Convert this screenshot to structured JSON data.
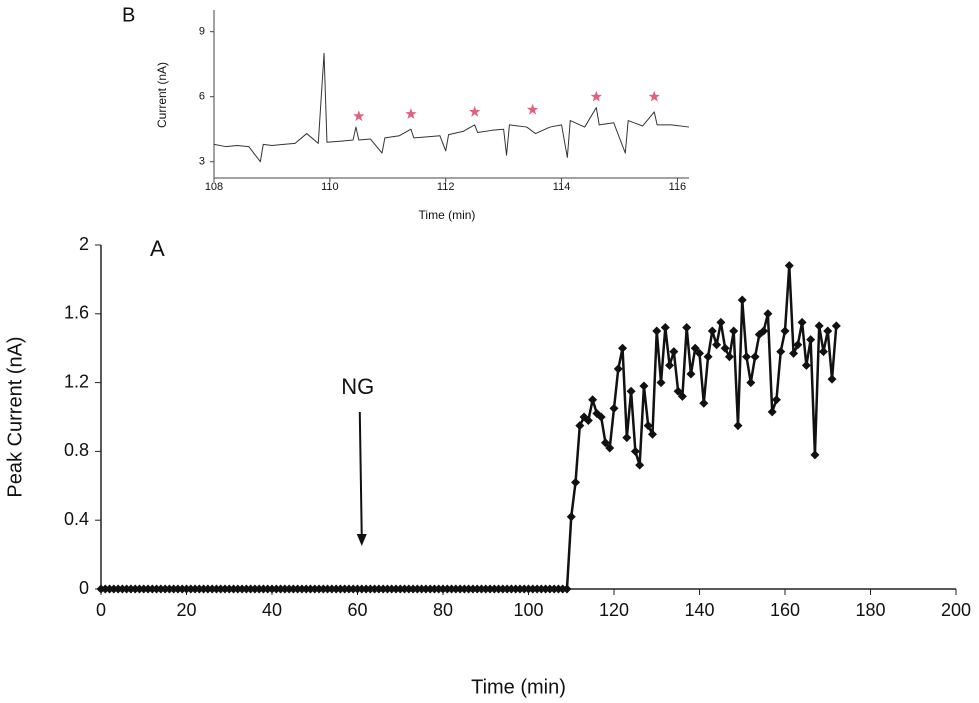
{
  "chart_data": [
    {
      "type": "line",
      "panel_label": "A",
      "xlabel": "Time (min)",
      "ylabel": "Peak Current (nA)",
      "xlim": [
        0,
        200
      ],
      "xticks": [
        0,
        20,
        40,
        60,
        80,
        100,
        120,
        140,
        160,
        180,
        200
      ],
      "ylim": [
        0,
        2
      ],
      "yticks": [
        0,
        0.4,
        0.8,
        1.2,
        1.6,
        2
      ],
      "color": "#111111",
      "marker": "diamond",
      "annotations": [
        {
          "text": "NG",
          "x": 61
        }
      ],
      "x": [
        0,
        1,
        2,
        3,
        4,
        5,
        6,
        7,
        8,
        9,
        10,
        11,
        12,
        13,
        14,
        15,
        16,
        17,
        18,
        19,
        20,
        21,
        22,
        23,
        24,
        25,
        26,
        27,
        28,
        29,
        30,
        31,
        32,
        33,
        34,
        35,
        36,
        37,
        38,
        39,
        40,
        41,
        42,
        43,
        44,
        45,
        46,
        47,
        48,
        49,
        50,
        51,
        52,
        53,
        54,
        55,
        56,
        57,
        58,
        59,
        60,
        61,
        62,
        63,
        64,
        65,
        66,
        67,
        68,
        69,
        70,
        71,
        72,
        73,
        74,
        75,
        76,
        77,
        78,
        79,
        80,
        81,
        82,
        83,
        84,
        85,
        86,
        87,
        88,
        89,
        90,
        91,
        92,
        93,
        94,
        95,
        96,
        97,
        98,
        99,
        100,
        101,
        102,
        103,
        104,
        105,
        106,
        107,
        108,
        109,
        110,
        111,
        112,
        113,
        114,
        115,
        116,
        117,
        118,
        119,
        120,
        121,
        122,
        123,
        124,
        125,
        126,
        127,
        128,
        129,
        130,
        131,
        132,
        133,
        134,
        135,
        136,
        137,
        138,
        139,
        140,
        141,
        142,
        143,
        144,
        145,
        146,
        147,
        148,
        149,
        150,
        151,
        152,
        153,
        154,
        155,
        156,
        157,
        158,
        159,
        160,
        161,
        162,
        163,
        164,
        165,
        166,
        167,
        168,
        169,
        170,
        171,
        172
      ],
      "values": [
        0,
        0,
        0,
        0,
        0,
        0,
        0,
        0,
        0,
        0,
        0,
        0,
        0,
        0,
        0,
        0,
        0,
        0,
        0,
        0,
        0,
        0,
        0,
        0,
        0,
        0,
        0,
        0,
        0,
        0,
        0,
        0,
        0,
        0,
        0,
        0,
        0,
        0,
        0,
        0,
        0,
        0,
        0,
        0,
        0,
        0,
        0,
        0,
        0,
        0,
        0,
        0,
        0,
        0,
        0,
        0,
        0,
        0,
        0,
        0,
        0,
        0,
        0,
        0,
        0,
        0,
        0,
        0,
        0,
        0,
        0,
        0,
        0,
        0,
        0,
        0,
        0,
        0,
        0,
        0,
        0,
        0,
        0,
        0,
        0,
        0,
        0,
        0,
        0,
        0,
        0,
        0,
        0,
        0,
        0,
        0,
        0,
        0,
        0,
        0,
        0,
        0,
        0,
        0,
        0,
        0,
        0,
        0,
        0,
        0,
        0.42,
        0.62,
        0.95,
        1.0,
        0.98,
        1.1,
        1.02,
        1.0,
        0.85,
        0.82,
        1.05,
        1.28,
        1.4,
        0.88,
        1.15,
        0.8,
        0.72,
        1.18,
        0.95,
        0.9,
        1.5,
        1.2,
        1.52,
        1.3,
        1.38,
        1.15,
        1.12,
        1.52,
        1.25,
        1.4,
        1.37,
        1.08,
        1.35,
        1.5,
        1.42,
        1.55,
        1.4,
        1.35,
        1.5,
        0.95,
        1.68,
        1.35,
        1.2,
        1.35,
        1.48,
        1.5,
        1.6,
        1.03,
        1.1,
        1.38,
        1.5,
        1.88,
        1.37,
        1.42,
        1.55,
        1.3,
        1.45,
        0.78,
        1.53,
        1.38,
        1.5,
        1.22,
        1.53
      ]
    },
    {
      "type": "trace",
      "panel_label": "B",
      "xlabel": "Time (min)",
      "ylabel": "Current (nA)",
      "xlim": [
        108,
        116.2
      ],
      "xticks": [
        108,
        110,
        112,
        114,
        116
      ],
      "ylim": [
        2.25,
        10
      ],
      "yticks": [
        3,
        6,
        9
      ],
      "color": "#333333",
      "x": [
        108.0,
        108.2,
        108.4,
        108.6,
        108.8,
        108.85,
        109.0,
        109.2,
        109.4,
        109.6,
        109.8,
        109.9,
        109.95,
        110.2,
        110.4,
        110.45,
        110.5,
        110.7,
        110.9,
        110.95,
        111.2,
        111.4,
        111.45,
        111.7,
        111.9,
        112.0,
        112.05,
        112.3,
        112.5,
        112.55,
        112.8,
        113.0,
        113.05,
        113.1,
        113.4,
        113.55,
        113.8,
        114.0,
        114.1,
        114.15,
        114.4,
        114.6,
        114.65,
        114.9,
        115.1,
        115.15,
        115.4,
        115.6,
        115.65,
        115.9,
        116.2
      ],
      "values": [
        3.8,
        3.7,
        3.75,
        3.7,
        3.0,
        3.8,
        3.75,
        3.8,
        3.85,
        4.3,
        3.85,
        8.0,
        3.9,
        3.95,
        4.0,
        4.6,
        4.0,
        4.05,
        3.4,
        4.1,
        4.2,
        4.5,
        4.1,
        4.15,
        4.2,
        3.5,
        4.25,
        4.4,
        4.7,
        4.35,
        4.45,
        4.5,
        3.3,
        4.7,
        4.6,
        4.3,
        4.6,
        4.7,
        3.2,
        4.9,
        4.6,
        5.5,
        4.7,
        4.8,
        3.4,
        4.9,
        4.65,
        5.3,
        4.7,
        4.7,
        4.6
      ],
      "markers": {
        "color": "#e0607e",
        "x": [
          110.5,
          111.4,
          112.5,
          113.5,
          114.6,
          115.6
        ],
        "values": [
          5.1,
          5.2,
          5.3,
          5.4,
          6.0,
          6.0
        ]
      }
    }
  ]
}
